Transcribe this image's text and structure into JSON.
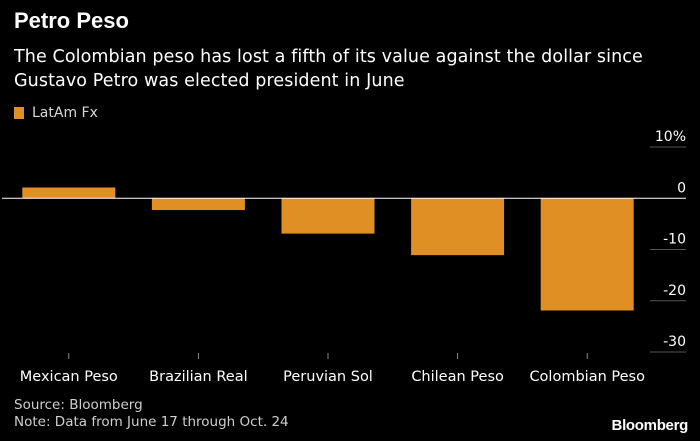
{
  "title": "Petro Peso",
  "subtitle": "The Colombian peso has lost a fifth of its value against the dollar since Gustavo Petro was elected president in June",
  "legend": {
    "label": "LatAm Fx",
    "color": "#e08f24"
  },
  "footer": {
    "source": "Source: Bloomberg",
    "note": "Note: Data from June 17 through Oct. 24"
  },
  "logo": "Bloomberg",
  "colors": {
    "background": "#000000",
    "bar": "#e08f24",
    "zero_line": "#ffffff",
    "grid": "#555555"
  },
  "chart_data": {
    "type": "bar",
    "categories": [
      "Mexican Peso",
      "Brazilian Real",
      "Peruvian Sol",
      "Chilean Peso",
      "Colombian Peso"
    ],
    "series": [
      {
        "name": "LatAm Fx",
        "values": [
          2.1,
          -2.3,
          -6.9,
          -11.1,
          -21.9
        ]
      }
    ],
    "ylim": [
      -30,
      10
    ],
    "yticks": [
      10,
      0,
      -10,
      -20,
      -30
    ],
    "ytick_labels": [
      "10%",
      "0",
      "-10",
      "-20",
      "-30"
    ],
    "yaxis_position": "right",
    "xlabel": "",
    "ylabel": "",
    "legend_position": "top-left"
  }
}
